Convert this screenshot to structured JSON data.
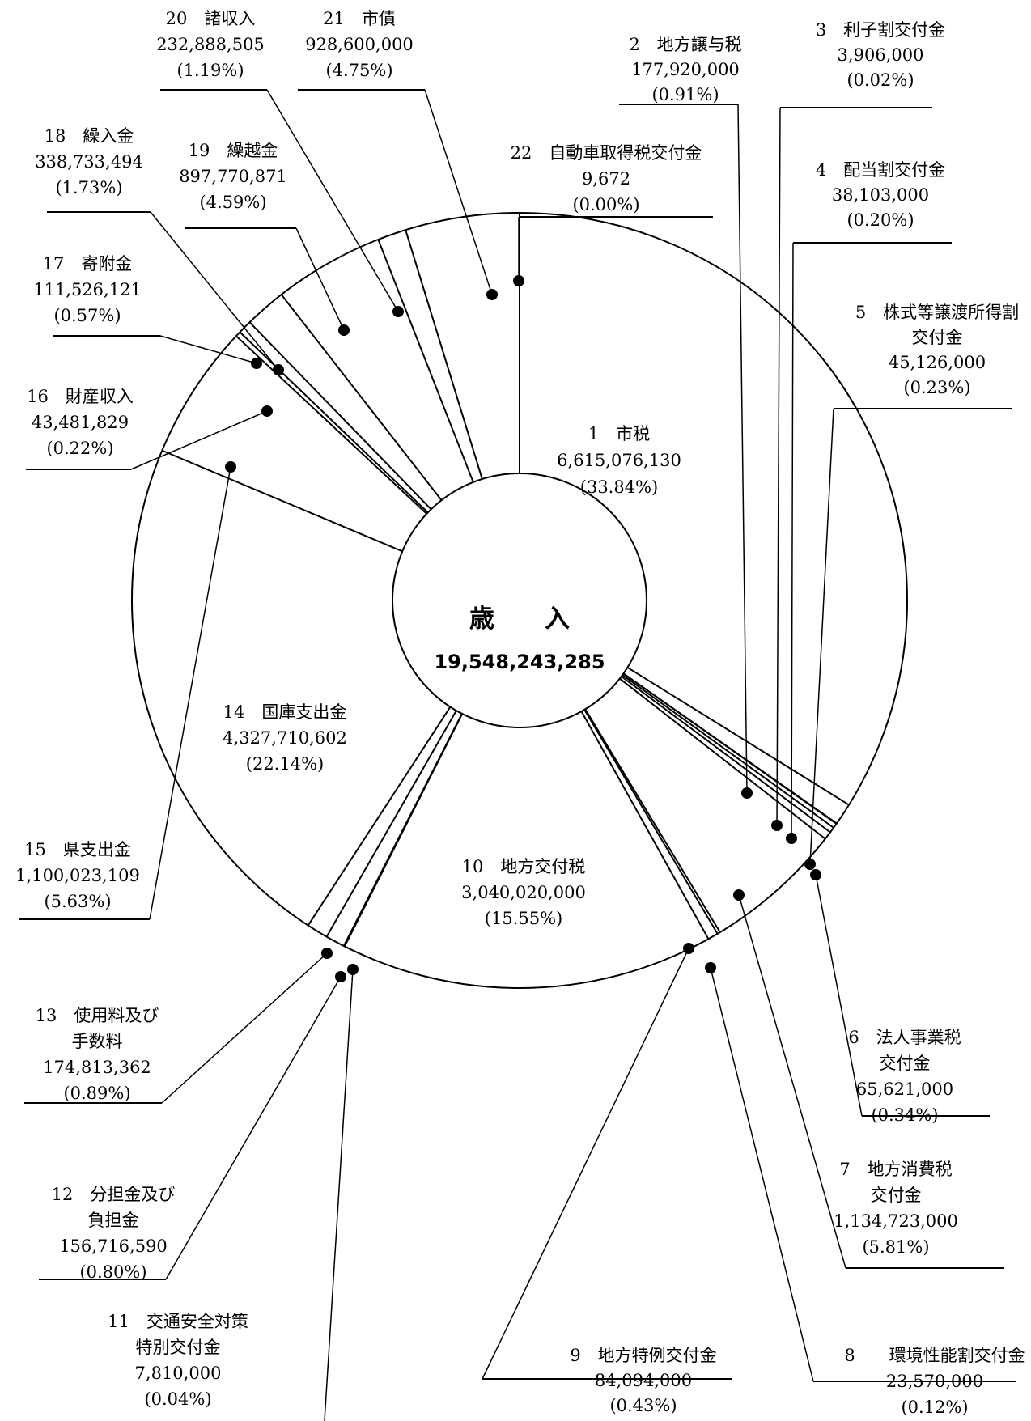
{
  "chart_data": {
    "type": "pie",
    "style": "donut",
    "center": {
      "title": "歳　　入",
      "total": "19,548,243,285"
    },
    "slices": [
      {
        "no": "1",
        "name": "市税",
        "amount": "6,615,076,130",
        "percent": "(33.84%)",
        "value": 33.84
      },
      {
        "no": "2",
        "name": "地方譲与税",
        "amount": "177,920,000",
        "percent": "(0.91%)",
        "value": 0.91
      },
      {
        "no": "3",
        "name": "利子割交付金",
        "amount": "3,906,000",
        "percent": "(0.02%)",
        "value": 0.02
      },
      {
        "no": "4",
        "name": "配当割交付金",
        "amount": "38,103,000",
        "percent": "(0.20%)",
        "value": 0.2
      },
      {
        "no": "5",
        "name": "株式等譲渡所得割交付金",
        "amount": "45,126,000",
        "percent": "(0.23%)",
        "value": 0.23
      },
      {
        "no": "6",
        "name": "法人事業税交付金",
        "amount": "65,621,000",
        "percent": "(0.34%)",
        "value": 0.34
      },
      {
        "no": "7",
        "name": "地方消費税交付金",
        "amount": "1,134,723,000",
        "percent": "(5.81%)",
        "value": 5.81
      },
      {
        "no": "8",
        "name": "環境性能割交付金",
        "amount": "23,570,000",
        "percent": "(0.12%)",
        "value": 0.12
      },
      {
        "no": "9",
        "name": "地方特例交付金",
        "amount": "84,094,000",
        "percent": "(0.43%)",
        "value": 0.43
      },
      {
        "no": "10",
        "name": "地方交付税",
        "amount": "3,040,020,000",
        "percent": "(15.55%)",
        "value": 15.55
      },
      {
        "no": "11",
        "name": "交通安全対策特別交付金",
        "amount": "7,810,000",
        "percent": "(0.04%)",
        "value": 0.04
      },
      {
        "no": "12",
        "name": "分担金及び負担金",
        "amount": "156,716,590",
        "percent": "(0.80%)",
        "value": 0.8
      },
      {
        "no": "13",
        "name": "使用料及び手数料",
        "amount": "174,813,362",
        "percent": "(0.89%)",
        "value": 0.89
      },
      {
        "no": "14",
        "name": "国庫支出金",
        "amount": "4,327,710,602",
        "percent": "(22.14%)",
        "value": 22.14
      },
      {
        "no": "15",
        "name": "県支出金",
        "amount": "1,100,023,109",
        "percent": "(5.63%)",
        "value": 5.63
      },
      {
        "no": "16",
        "name": "財産収入",
        "amount": "43,481,829",
        "percent": "(0.22%)",
        "value": 0.22
      },
      {
        "no": "17",
        "name": "寄附金",
        "amount": "111,526,121",
        "percent": "(0.57%)",
        "value": 0.57
      },
      {
        "no": "18",
        "name": "繰入金",
        "amount": "338,733,494",
        "percent": "(1.73%)",
        "value": 1.73
      },
      {
        "no": "19",
        "name": "繰越金",
        "amount": "897,770,871",
        "percent": "(4.59%)",
        "value": 4.59
      },
      {
        "no": "20",
        "name": "諸収入",
        "amount": "232,888,505",
        "percent": "(1.19%)",
        "value": 1.19
      },
      {
        "no": "21",
        "name": "市債",
        "amount": "928,600,000",
        "percent": "(4.75%)",
        "value": 4.75
      },
      {
        "no": "22",
        "name": "自動車取得税交付金",
        "amount": "9,672",
        "percent": "(0.00%)",
        "value": 0.0
      }
    ],
    "labels": [
      {
        "slice": 0,
        "lines": [
          "1　市税",
          "6,615,076,130",
          "(33.84%)"
        ]
      },
      {
        "slice": 1,
        "lines": [
          "2　地方譲与税",
          "177,920,000",
          "(0.91%)"
        ]
      },
      {
        "slice": 2,
        "lines": [
          "3　利子割交付金",
          "3,906,000",
          "(0.02%)"
        ]
      },
      {
        "slice": 3,
        "lines": [
          "4　配当割交付金",
          "38,103,000",
          "(0.20%)"
        ]
      },
      {
        "slice": 4,
        "lines": [
          "5　株式等譲渡所得割",
          "交付金",
          "45,126,000",
          "(0.23%)"
        ]
      },
      {
        "slice": 5,
        "lines": [
          "6　法人事業税",
          "交付金",
          "65,621,000",
          "(0.34%)"
        ]
      },
      {
        "slice": 6,
        "lines": [
          "7　地方消費税",
          "交付金",
          "1,134,723,000",
          "(5.81%)"
        ]
      },
      {
        "slice": 7,
        "lines": [
          "8　　環境性能割交付金",
          "23,570,000",
          "(0.12%)"
        ]
      },
      {
        "slice": 8,
        "lines": [
          "9　地方特例交付金",
          "84,094,000",
          "(0.43%)"
        ]
      },
      {
        "slice": 9,
        "lines": [
          "10　地方交付税",
          "3,040,020,000",
          "(15.55%)"
        ]
      },
      {
        "slice": 10,
        "lines": [
          "11　交通安全対策",
          "特別交付金",
          "7,810,000",
          "(0.04%)"
        ]
      },
      {
        "slice": 11,
        "lines": [
          "12　分担金及び",
          "負担金",
          "156,716,590",
          "(0.80%)"
        ]
      },
      {
        "slice": 12,
        "lines": [
          "13　使用料及び",
          "手数料",
          "174,813,362",
          "(0.89%)"
        ]
      },
      {
        "slice": 13,
        "lines": [
          "14　国庫支出金",
          "4,327,710,602",
          "(22.14%)"
        ]
      },
      {
        "slice": 14,
        "lines": [
          "15　県支出金",
          "1,100,023,109",
          "(5.63%)"
        ]
      },
      {
        "slice": 15,
        "lines": [
          "16　財産収入",
          "43,481,829",
          "(0.22%)"
        ]
      },
      {
        "slice": 16,
        "lines": [
          "17　寄附金",
          "111,526,121",
          "(0.57%)"
        ]
      },
      {
        "slice": 17,
        "lines": [
          "18　繰入金",
          "338,733,494",
          "(1.73%)"
        ]
      },
      {
        "slice": 18,
        "lines": [
          "19　繰越金",
          "897,770,871",
          "(4.59%)"
        ]
      },
      {
        "slice": 19,
        "lines": [
          "20　諸収入",
          "232,888,505",
          "(1.19%)"
        ]
      },
      {
        "slice": 20,
        "lines": [
          "21　市債",
          "928,600,000",
          "(4.75%)"
        ]
      },
      {
        "slice": 21,
        "lines": [
          "22　自動車取得税交付金",
          "9,672",
          "(0.00%)"
        ]
      }
    ]
  }
}
